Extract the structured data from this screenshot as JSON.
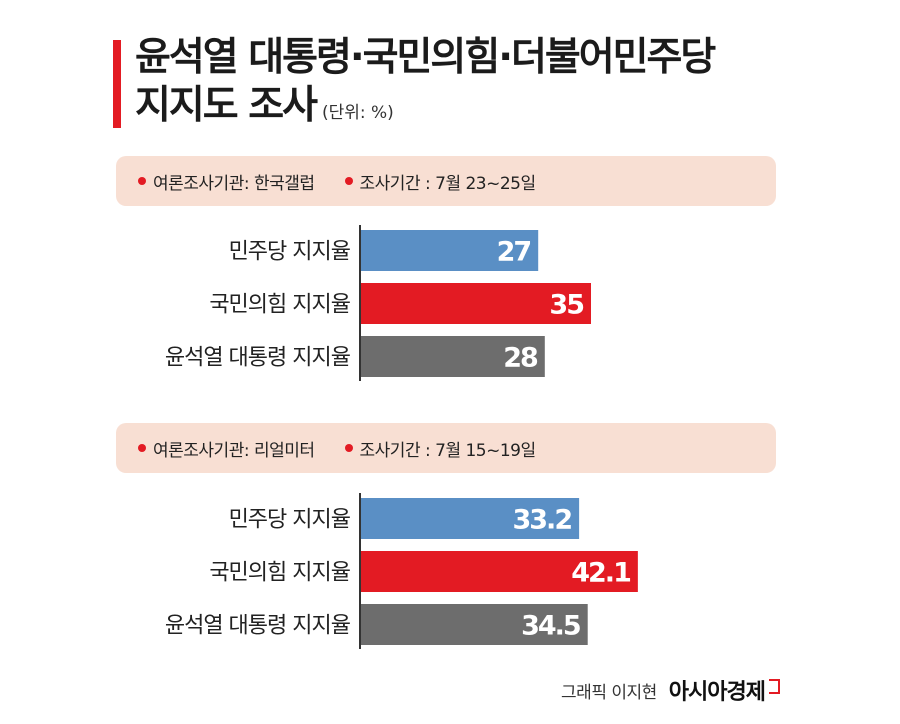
{
  "title_line1": "윤석열 대통령·국민의힘·더불어민주당",
  "title_line2": "지지도 조사",
  "unit_note": "(단위: %)",
  "colors": {
    "accent": "#e31b23",
    "blue": "#5a8fc5",
    "red": "#e31b23",
    "gray": "#6d6d6d",
    "header_bg": "#f8dfd3"
  },
  "chart_data": [
    {
      "type": "bar",
      "orientation": "horizontal",
      "pollster_label": "여론조사기관: 한국갤럽",
      "period_label": "조사기간 : 7월 23~25일",
      "categories": [
        "민주당 지지율",
        "국민의힘 지지율",
        "윤석열 대통령 지지율"
      ],
      "values": [
        27,
        35,
        28
      ],
      "value_labels": [
        "27",
        "35",
        "28"
      ],
      "bar_colors": [
        "#5a8fc5",
        "#e31b23",
        "#6d6d6d"
      ],
      "xlim": [
        0,
        60
      ]
    },
    {
      "type": "bar",
      "orientation": "horizontal",
      "pollster_label": "여론조사기관: 리얼미터",
      "period_label": "조사기간 : 7월 15~19일",
      "categories": [
        "민주당 지지율",
        "국민의힘 지지율",
        "윤석열 대통령 지지율"
      ],
      "values": [
        33.2,
        42.1,
        34.5
      ],
      "value_labels": [
        "33.2",
        "42.1",
        "34.5"
      ],
      "bar_colors": [
        "#5a8fc5",
        "#e31b23",
        "#6d6d6d"
      ],
      "xlim": [
        0,
        60
      ]
    }
  ],
  "credit": "그래픽 이지현",
  "brand": "아시아경제"
}
